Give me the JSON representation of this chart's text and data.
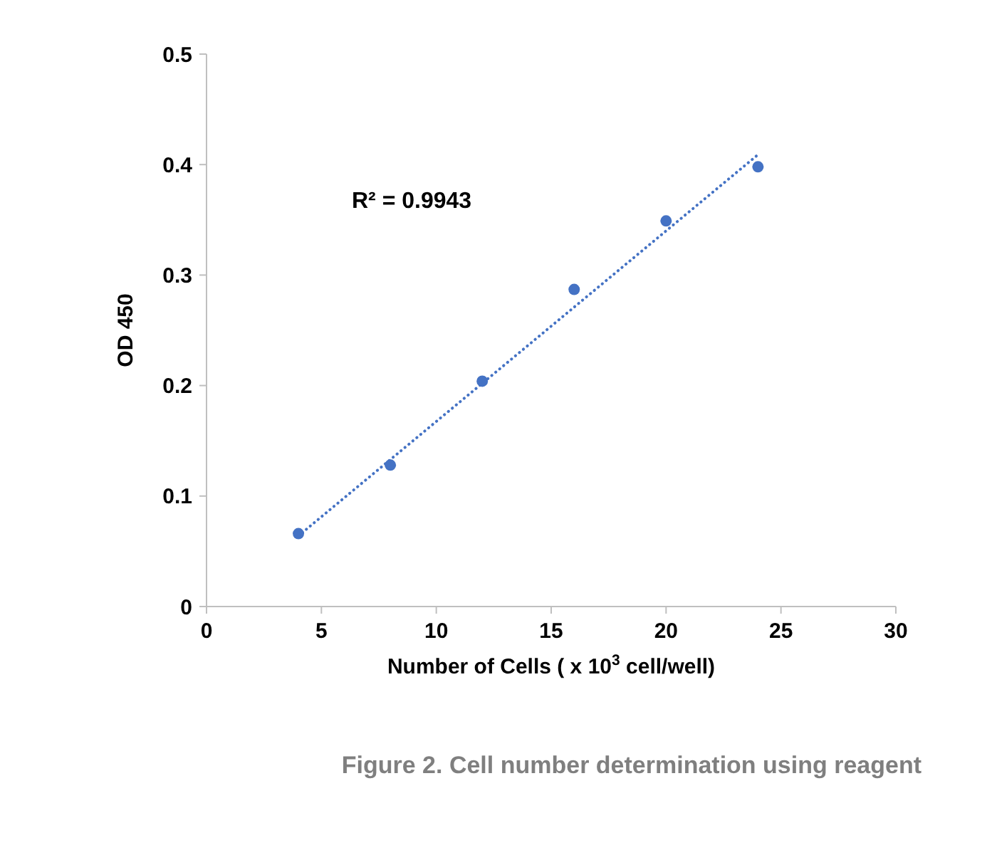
{
  "chart_data": {
    "type": "scatter",
    "xlabel": "Number of Cells  ( x 10$^{3}$ cell/well)",
    "ylabel": "OD 450",
    "xlim": [
      0,
      30
    ],
    "xticks": [
      0,
      5,
      10,
      15,
      20,
      25,
      30
    ],
    "ylim": [
      0,
      0.5
    ],
    "yticks": [
      {
        "value": 0,
        "label": "0"
      },
      0.1,
      0.2,
      0.3,
      0.4,
      0.5
    ],
    "grid": false,
    "series": [
      {
        "color": "#4472c4",
        "marker": "circle",
        "x": [
          4,
          8,
          12,
          16,
          20,
          24
        ],
        "values": [
          0.066,
          0.128,
          0.204,
          0.287,
          0.349,
          0.398
        ]
      },
      {
        "type": "line",
        "color": "#4472c4",
        "line_style": "dotted",
        "marker": "none",
        "x": [
          4,
          24
        ],
        "values": [
          0.064,
          0.409
        ]
      }
    ],
    "annotations": [
      "R² = 0.9943",
      "Figure 2. Cell number determination using reagent"
    ]
  }
}
